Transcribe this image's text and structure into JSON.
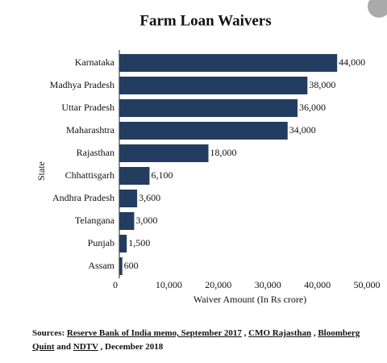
{
  "chart_data": {
    "type": "barh",
    "title": "Farm Loan Waivers",
    "categories": [
      "Karnataka",
      "Madhya Pradesh",
      "Uttar Pradesh",
      "Maharashtra",
      "Rajasthan",
      "Chhattisgarh",
      "Andhra Pradesh",
      "Telangana",
      "Punjab",
      "Assam"
    ],
    "values": [
      44000,
      38000,
      36000,
      34000,
      18000,
      6100,
      3600,
      3000,
      1500,
      600
    ],
    "value_labels": [
      "44,000",
      "38,000",
      "36,000",
      "34,000",
      "18,000",
      "6,100",
      "3,600",
      "3,000",
      "1,500",
      "600"
    ],
    "color": "#233d60",
    "xlim": [
      0,
      50000
    ],
    "xticks": [
      0,
      {
        "value": 10000,
        "label": "10,000"
      },
      {
        "value": 20000,
        "label": "20,000"
      },
      {
        "value": 30000,
        "label": "30,000"
      },
      {
        "value": 40000,
        "label": "40,000"
      },
      {
        "value": 50000,
        "label": "50,000"
      }
    ],
    "xlabel": "Waiver Amount (In Rs crore)",
    "ylabel": "State",
    "grid": false
  },
  "sources": [
    {
      "text": "Sources:",
      "underline": false
    },
    {
      "text": "Reserve Bank of India memo, September 2017",
      "underline": true
    },
    {
      "text": ",",
      "underline": false
    },
    {
      "text": "CMO Rajasthan",
      "underline": true
    },
    {
      "text": ",",
      "underline": false
    },
    {
      "text": "Bloomberg Quint",
      "underline": true
    },
    {
      "text": "and",
      "underline": false
    },
    {
      "text": "NDTV",
      "underline": true
    },
    {
      "text": ", December 2018",
      "underline": false
    }
  ]
}
